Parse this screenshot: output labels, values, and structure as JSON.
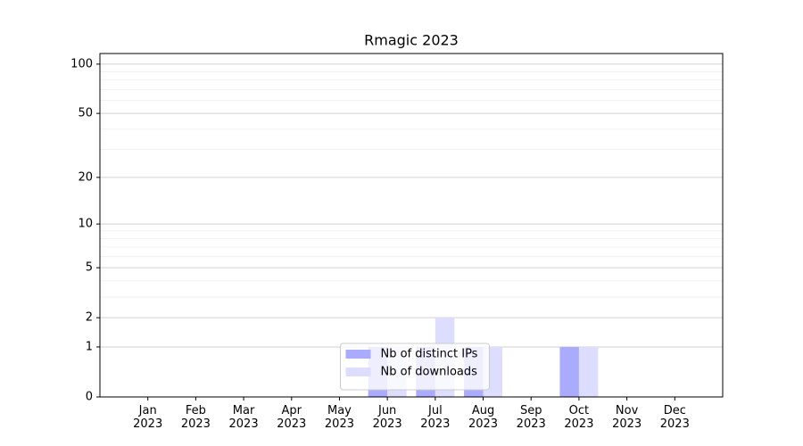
{
  "chart_data": {
    "type": "bar",
    "title": "Rmagic 2023",
    "categories": [
      "Jan\n2023",
      "Feb\n2023",
      "Mar\n2023",
      "Apr\n2023",
      "May\n2023",
      "Jun\n2023",
      "Jul\n2023",
      "Aug\n2023",
      "Sep\n2023",
      "Oct\n2023",
      "Nov\n2023",
      "Dec\n2023"
    ],
    "series": [
      {
        "name": "Nb of distinct IPs",
        "color": "#aaaaff",
        "values": [
          0,
          0,
          0,
          0,
          0,
          1,
          1,
          1,
          0,
          1,
          0,
          0
        ]
      },
      {
        "name": "Nb of downloads",
        "color": "#ddddff",
        "values": [
          0,
          0,
          0,
          0,
          0,
          1,
          2,
          1,
          0,
          1,
          0,
          0
        ]
      }
    ],
    "yscale": "log1p",
    "ylim": [
      0,
      116
    ],
    "yticks": [
      0,
      1,
      2,
      5,
      10,
      20,
      50,
      100
    ],
    "yminorticks": [
      3,
      4,
      6,
      7,
      8,
      9,
      30,
      40,
      60,
      70,
      80,
      90
    ],
    "grid": true,
    "legend": "lower center"
  }
}
